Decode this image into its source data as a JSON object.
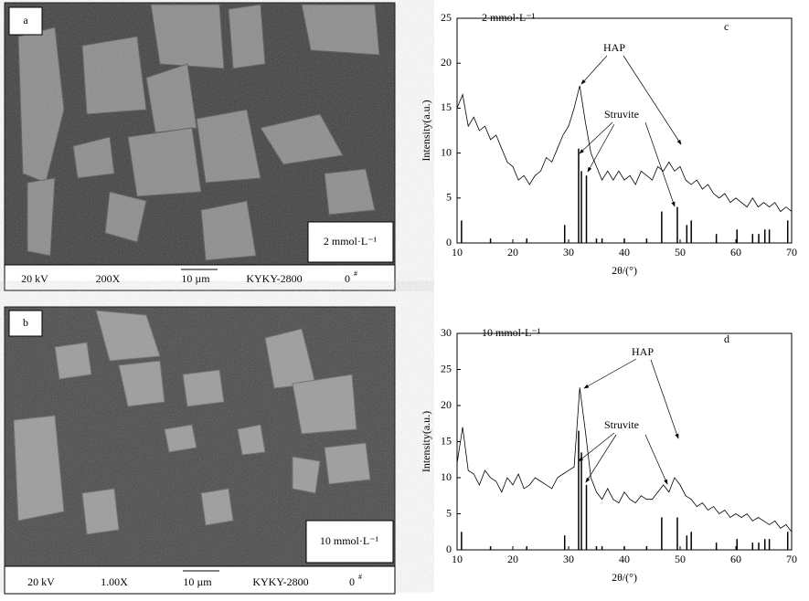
{
  "images": [
    {
      "label": "a",
      "inset": "2 mmol·L⁻¹",
      "caption": [
        {
          "text": "20 kV"
        },
        {
          "text": "200X"
        },
        {
          "text": "10 µm"
        },
        {
          "text": "KYKY-2800"
        },
        {
          "text": "0",
          "sup": "#"
        }
      ]
    },
    {
      "label": "b",
      "inset": "10 mmol·L⁻¹",
      "caption": [
        {
          "text": "20 kV"
        },
        {
          "text": "1.00X"
        },
        {
          "text": "10 µm"
        },
        {
          "text": "KYKY-2800"
        },
        {
          "text": "0",
          "sup": "#"
        }
      ]
    }
  ],
  "chart_data": [
    {
      "type": "line",
      "label": "c",
      "subtitle": "2 mmol·L⁻¹",
      "xlabel": "2θ/(°)",
      "ylabel": "Intensity(a.u.)",
      "color": "#000000",
      "annotations": [
        "HAP",
        "Struvite"
      ],
      "x": [
        10,
        11,
        12,
        13,
        14,
        15,
        16,
        17,
        18,
        19,
        20,
        21,
        22,
        23,
        24,
        25,
        26,
        27,
        28,
        29,
        30,
        31,
        32,
        33,
        34,
        35,
        36,
        37,
        38,
        39,
        40,
        41,
        42,
        43,
        44,
        45,
        46,
        47,
        48,
        49,
        50,
        51,
        52,
        53,
        54,
        55,
        56,
        57,
        58,
        59,
        60,
        61,
        62,
        63,
        64,
        65,
        66,
        67,
        68,
        69,
        70
      ],
      "values": [
        15,
        16.5,
        13,
        14,
        12.5,
        13,
        11.5,
        12,
        10.5,
        9,
        8.5,
        7,
        7.5,
        6.5,
        7.5,
        8,
        9.5,
        9,
        10.5,
        12,
        13,
        15,
        17.5,
        13.5,
        10,
        8.5,
        7,
        8,
        7,
        8,
        7,
        7.5,
        6.5,
        8,
        7.5,
        7,
        8.5,
        8,
        9,
        8,
        8.5,
        7,
        6.5,
        7,
        6,
        6.5,
        5.5,
        5,
        5.5,
        4.5,
        5,
        4.5,
        4,
        5,
        4,
        4.5,
        4,
        4.5,
        3.5,
        4,
        3.5
      ],
      "reference_x": [
        10.8,
        16,
        22.5,
        29.3,
        31.8,
        32.3,
        33.2,
        35,
        36,
        40,
        44,
        46.7,
        49.5,
        51.2,
        52,
        56.5,
        60.2,
        63,
        64.1,
        65.2,
        66,
        69.3
      ],
      "reference_values": [
        2.5,
        0.5,
        0.5,
        2,
        10.5,
        8,
        7.5,
        0.5,
        0.5,
        0.5,
        0.5,
        3.5,
        4,
        2,
        2.5,
        1,
        1.5,
        1,
        1,
        1.5,
        1.5,
        2.5
      ],
      "xlim": [
        10,
        70
      ],
      "xticks": [
        10,
        20,
        30,
        40,
        50,
        60,
        70
      ],
      "ylim": [
        0,
        25
      ],
      "yticks": [
        0,
        5,
        10,
        15,
        20,
        25
      ]
    },
    {
      "type": "line",
      "label": "d",
      "subtitle": "10 mmol·L⁻¹",
      "xlabel": "2θ/(°)",
      "ylabel": "Intensity(a.u.)",
      "color": "#000000",
      "annotations": [
        "HAP",
        "Struvite"
      ],
      "x": [
        10,
        11,
        12,
        13,
        14,
        15,
        16,
        17,
        18,
        19,
        20,
        21,
        22,
        23,
        24,
        25,
        26,
        27,
        28,
        29,
        30,
        31,
        32,
        33,
        34,
        35,
        36,
        37,
        38,
        39,
        40,
        41,
        42,
        43,
        44,
        45,
        46,
        47,
        48,
        49,
        50,
        51,
        52,
        53,
        54,
        55,
        56,
        57,
        58,
        59,
        60,
        61,
        62,
        63,
        64,
        65,
        66,
        67,
        68,
        69,
        70
      ],
      "values": [
        12,
        17,
        11,
        10.5,
        9,
        11,
        10,
        9.5,
        8,
        10,
        9,
        10.5,
        8.5,
        9,
        10,
        9.5,
        9,
        8.5,
        10,
        10.5,
        11,
        11.5,
        22.5,
        16.5,
        10,
        8,
        7,
        8.5,
        7,
        6.5,
        8,
        7,
        6.5,
        7.5,
        7,
        7,
        8,
        9,
        8,
        10,
        9,
        7.5,
        7,
        6,
        6.5,
        5.5,
        6,
        5,
        5.5,
        4.5,
        5,
        4.5,
        5,
        4,
        4.5,
        4,
        3.5,
        4,
        3,
        3.5,
        2.5
      ],
      "reference_x": [
        10.8,
        16,
        22.5,
        29.3,
        31.8,
        32.3,
        33.2,
        35,
        36,
        40,
        44,
        46.7,
        49.5,
        51.2,
        52,
        56.5,
        60.2,
        63,
        64.1,
        65.2,
        66,
        69.3
      ],
      "reference_values": [
        2.5,
        0.5,
        0.5,
        2,
        16.5,
        13.5,
        9,
        0.5,
        0.5,
        0.5,
        0.5,
        4.5,
        4.5,
        2,
        2.5,
        1,
        1.5,
        1,
        1,
        1.5,
        1.5,
        2.5
      ],
      "xlim": [
        10,
        70
      ],
      "xticks": [
        10,
        20,
        30,
        40,
        50,
        60,
        70
      ],
      "ylim": [
        0,
        30
      ],
      "yticks": [
        0,
        5,
        10,
        15,
        20,
        25,
        30
      ]
    }
  ]
}
